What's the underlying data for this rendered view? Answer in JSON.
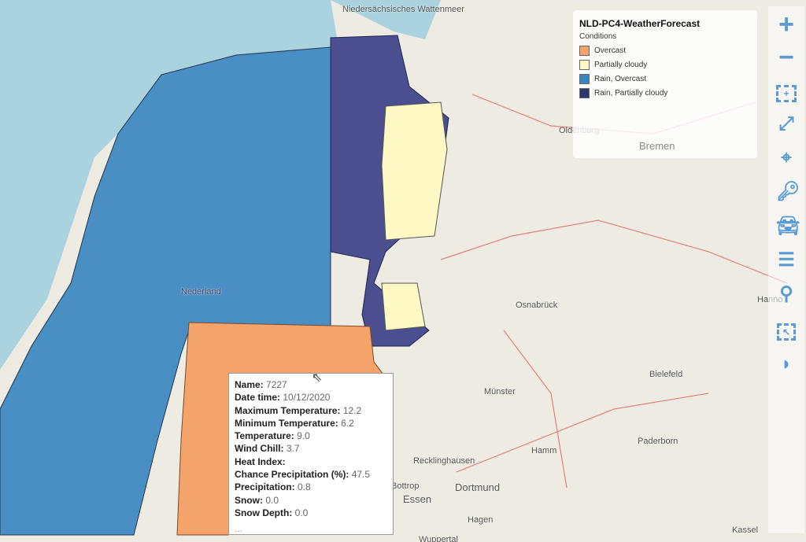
{
  "legend": {
    "title": "NLD-PC4-WeatherForecast",
    "subtitle": "Conditions",
    "items": [
      {
        "label": "Overcast",
        "color": "#f4a46a"
      },
      {
        "label": "Partially cloudy",
        "color": "#fdf8c4"
      },
      {
        "label": "Rain, Overcast",
        "color": "#3a85c0"
      },
      {
        "label": "Rain, Partially cloudy",
        "color": "#2b3a6b"
      }
    ]
  },
  "map_labels": [
    "Niedersächsisches Wattenmeer",
    "Oldenburg",
    "Bremen",
    "Osnabrück",
    "Bielefeld",
    "Münster",
    "Hamm",
    "Paderborn",
    "Recklinghausen",
    "Dortmund",
    "Essen",
    "Bottrop",
    "Hagen",
    "Wuppertal",
    "Kassel",
    "Hanno",
    "Nederland"
  ],
  "toolbar": [
    "zoom-in",
    "zoom-out",
    "zoom-box",
    "full-extent",
    "locate",
    "key",
    "car",
    "layers-list",
    "search",
    "select",
    "signal"
  ],
  "popup": {
    "fields": [
      {
        "label": "Name:",
        "value": "7227"
      },
      {
        "label": "Date time:",
        "value": "10/12/2020"
      },
      {
        "label": "Maximum Temperature:",
        "value": "12.2"
      },
      {
        "label": "Minimum Temperature:",
        "value": "6.2"
      },
      {
        "label": "Temperature:",
        "value": "9.0"
      },
      {
        "label": "Wind Chill:",
        "value": "3.7"
      },
      {
        "label": "Heat Index:",
        "value": ""
      },
      {
        "label": "Chance Precipitation (%):",
        "value": "47.5"
      },
      {
        "label": "Precipitation:",
        "value": "0.8"
      },
      {
        "label": "Snow:",
        "value": "0.0"
      },
      {
        "label": "Snow Depth:",
        "value": "0.0"
      }
    ],
    "more": "..."
  }
}
